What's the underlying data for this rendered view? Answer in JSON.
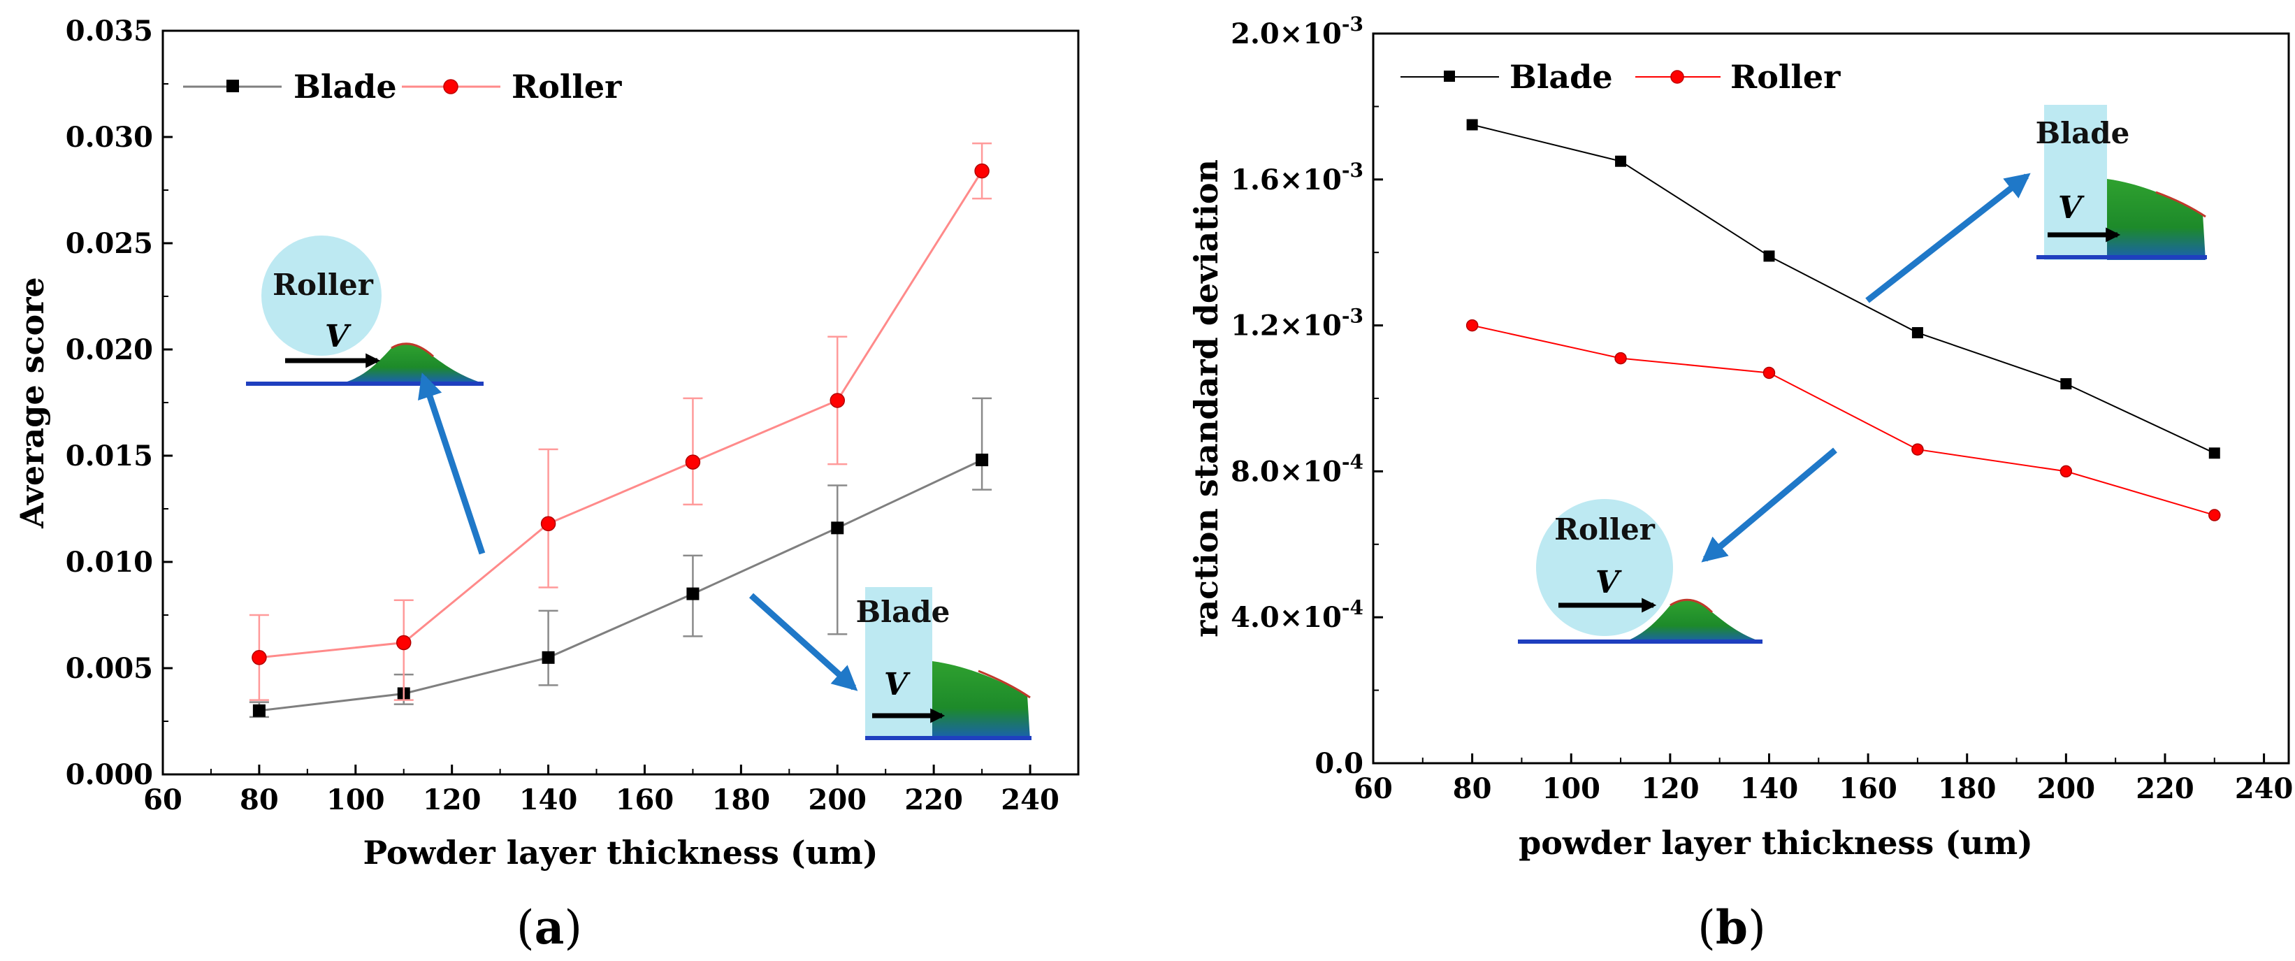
{
  "captions": {
    "a_open": "(",
    "a_letter": "a",
    "a_close": ")",
    "b_open": "(",
    "b_letter": "b",
    "b_close": ")"
  },
  "insets": {
    "roller_label": "Roller",
    "blade_label": "Blade",
    "velocity_symbol": "V"
  },
  "colors": {
    "blade": "#000000",
    "roller": "#ff0000",
    "roller_line": "#ff8a8a",
    "blade_line": "#7f7f7f",
    "arrow": "#1f78c8",
    "inset_bg": "#bde9f2"
  },
  "chart_data": [
    {
      "id": "a",
      "type": "line",
      "title": "",
      "xlabel": "Powder layer thickness (um)",
      "ylabel": "Average score",
      "xlim": [
        60,
        250
      ],
      "ylim": [
        0,
        0.035
      ],
      "xticks": [
        "60",
        "80",
        "100",
        "120",
        "140",
        "160",
        "180",
        "200",
        "220",
        "240"
      ],
      "yticks": [
        "0.000",
        "0.005",
        "0.010",
        "0.015",
        "0.020",
        "0.025",
        "0.030",
        "0.035"
      ],
      "legend_position": "top-left",
      "x": [
        80,
        110,
        140,
        170,
        200,
        230
      ],
      "series": [
        {
          "name": "Blade",
          "values": [
            0.003,
            0.0038,
            0.0055,
            0.0085,
            0.0116,
            0.0148
          ],
          "err_low": [
            0.0027,
            0.0033,
            0.0042,
            0.0065,
            0.0066,
            0.0134
          ],
          "err_high": [
            0.0034,
            0.0047,
            0.0077,
            0.0103,
            0.0136,
            0.0177
          ]
        },
        {
          "name": "Roller",
          "values": [
            0.0055,
            0.0062,
            0.0118,
            0.0147,
            0.0176,
            0.0284
          ],
          "err_low": [
            0.0035,
            0.0035,
            0.0088,
            0.0127,
            0.0146,
            0.0271
          ],
          "err_high": [
            0.0075,
            0.0082,
            0.0153,
            0.0177,
            0.0206,
            0.0297
          ]
        }
      ]
    },
    {
      "id": "b",
      "type": "line",
      "title": "",
      "xlabel": "powder layer thickness (um)",
      "ylabel": "raction standard deviation",
      "xlim": [
        60,
        245
      ],
      "ylim": [
        0,
        0.002
      ],
      "xticks": [
        "60",
        "80",
        "100",
        "120",
        "140",
        "160",
        "180",
        "200",
        "220",
        "240"
      ],
      "yticks": [
        {
          "mant": "0.0",
          "exp": ""
        },
        {
          "mant": "4.0",
          "exp": "-4"
        },
        {
          "mant": "8.0",
          "exp": "-4"
        },
        {
          "mant": "1.2",
          "exp": "-3"
        },
        {
          "mant": "1.6",
          "exp": "-3"
        },
        {
          "mant": "2.0",
          "exp": "-3"
        }
      ],
      "legend_position": "top-left",
      "x": [
        80,
        110,
        140,
        170,
        200,
        230
      ],
      "series": [
        {
          "name": "Blade",
          "values": [
            0.00175,
            0.00165,
            0.00139,
            0.00118,
            0.00104,
            0.00085
          ]
        },
        {
          "name": "Roller",
          "values": [
            0.0012,
            0.00111,
            0.00107,
            0.00086,
            0.0008,
            0.00068
          ]
        }
      ]
    }
  ]
}
